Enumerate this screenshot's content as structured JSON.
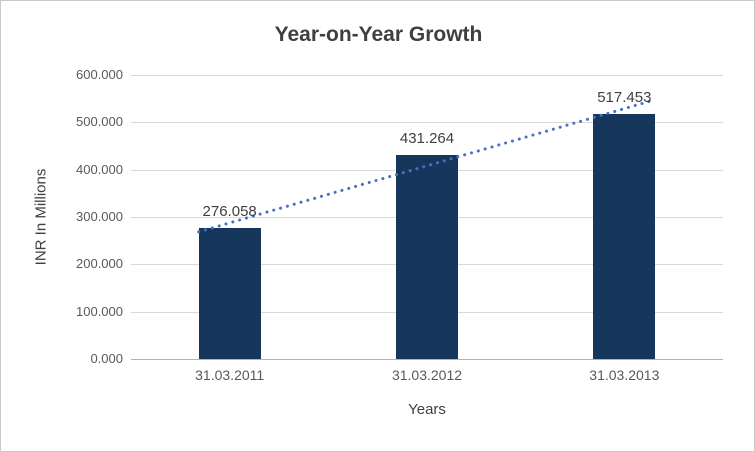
{
  "chart_data": {
    "type": "bar",
    "title": "Year-on-Year Growth",
    "xlabel": "Years",
    "ylabel": "INR In Millions",
    "categories": [
      "31.03.2011",
      "31.03.2012",
      "31.03.2013"
    ],
    "values": [
      276.058,
      431.264,
      517.453
    ],
    "value_labels": [
      "276.058",
      "431.264",
      "517.453"
    ],
    "ylim": [
      0,
      600
    ],
    "yticks": [
      {
        "value": 0,
        "label": "0.000"
      },
      {
        "value": 100,
        "label": "100.000"
      },
      {
        "value": 200,
        "label": "200.000"
      },
      {
        "value": 300,
        "label": "300.000"
      },
      {
        "value": 400,
        "label": "400.000"
      },
      {
        "value": 500,
        "label": "500.000"
      },
      {
        "value": 600,
        "label": "600.000"
      }
    ],
    "grid": "horizontal",
    "legend": "none",
    "bar_color": "#16365c",
    "trendline": {
      "type": "linear",
      "style": "dotted",
      "color": "#4472c4"
    },
    "title_color": "#3f3f3f",
    "axis_text_color": "#595959"
  }
}
